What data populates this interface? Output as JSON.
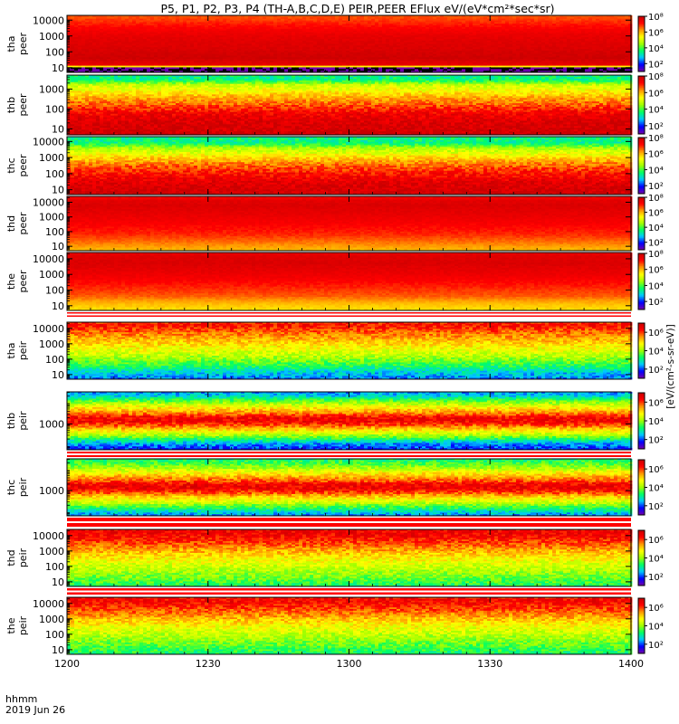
{
  "chart_data": {
    "type": "heatmap",
    "title": "P5, P1, P2, P3, P4 (TH-A,B,C,D,E) PEIR,PEER EFlux eV/(eV*cm²*sec*sr)",
    "x_ticks": [
      "1200",
      "1230",
      "1300",
      "1330",
      "1400"
    ],
    "x_tick_values": [
      1200,
      1230,
      1300,
      1330,
      1400
    ],
    "x_range": [
      "1200",
      "1400"
    ],
    "x_footer_label": "hhmm",
    "x_footer_date": "2019 Jun 26",
    "colorbar": {
      "label": "[eV/(cm²-s-sr-eV)]",
      "colors": [
        "#000000",
        "#7800a8",
        "#0000ff",
        "#00c8ff",
        "#00ff64",
        "#a0ff00",
        "#ffff00",
        "#ff9600",
        "#ff0000",
        "#c80000"
      ]
    },
    "panels": [
      {
        "id": "tha-peer",
        "label_line1": "tha",
        "label_line2": "peer",
        "y_ticks": [
          "10",
          "100",
          "1000",
          "10000"
        ],
        "y_tick_values": [
          10,
          100,
          1000,
          10000
        ],
        "y_range_log10": [
          0.7,
          4.3
        ],
        "colorbar_ticks": [
          "10²",
          "10⁴",
          "10⁶",
          "10⁸"
        ],
        "colorbar_range_log10": [
          1,
          8
        ],
        "energy_profile_log10": [
          [
            0.7,
            1.0
          ],
          [
            1.0,
            1.0
          ],
          [
            1.1,
            7.4
          ],
          [
            1.6,
            7.9
          ],
          [
            2.2,
            7.7
          ],
          [
            3.0,
            7.5
          ],
          [
            3.6,
            7.1
          ],
          [
            4.0,
            6.8
          ],
          [
            4.3,
            6.6
          ]
        ]
      },
      {
        "id": "thb-peer",
        "label_line1": "thb",
        "label_line2": "peer",
        "y_ticks": [
          "10",
          "100",
          "1000"
        ],
        "y_tick_values": [
          10,
          100,
          1000
        ],
        "y_range_log10": [
          0.7,
          3.7
        ],
        "colorbar_ticks": [
          "10²",
          "10⁴",
          "10⁶",
          "10⁸"
        ],
        "colorbar_range_log10": [
          1,
          8
        ],
        "energy_profile_log10": [
          [
            0.7,
            7.9
          ],
          [
            1.3,
            7.7
          ],
          [
            1.8,
            7.3
          ],
          [
            2.2,
            6.6
          ],
          [
            2.6,
            6.0
          ],
          [
            2.9,
            5.4
          ],
          [
            3.2,
            4.9
          ],
          [
            3.45,
            3.5
          ],
          [
            3.7,
            3.5
          ]
        ]
      },
      {
        "id": "thc-peer",
        "label_line1": "thc",
        "label_line2": "peer",
        "y_ticks": [
          "10",
          "100",
          "1000",
          "10000"
        ],
        "y_tick_values": [
          10,
          100,
          1000,
          10000
        ],
        "y_range_log10": [
          0.7,
          4.3
        ],
        "colorbar_ticks": [
          "10²",
          "10⁴",
          "10⁶",
          "10⁸"
        ],
        "colorbar_range_log10": [
          1,
          8
        ],
        "energy_profile_log10": [
          [
            0.7,
            7.9
          ],
          [
            1.4,
            7.6
          ],
          [
            2.0,
            7.1
          ],
          [
            2.6,
            6.4
          ],
          [
            3.0,
            5.7
          ],
          [
            3.3,
            5.1
          ],
          [
            3.6,
            4.6
          ],
          [
            3.9,
            3.5
          ],
          [
            4.3,
            3.5
          ]
        ]
      },
      {
        "id": "thd-peer",
        "label_line1": "thd",
        "label_line2": "peer",
        "y_ticks": [
          "10",
          "100",
          "1000",
          "10000"
        ],
        "y_tick_values": [
          10,
          100,
          1000,
          10000
        ],
        "y_range_log10": [
          0.7,
          4.4
        ],
        "colorbar_ticks": [
          "10²",
          "10⁴",
          "10⁶",
          "10⁸"
        ],
        "colorbar_range_log10": [
          1,
          8
        ],
        "energy_profile_log10": [
          [
            0.7,
            5.9
          ],
          [
            1.2,
            6.4
          ],
          [
            1.8,
            6.9
          ],
          [
            2.5,
            7.2
          ],
          [
            3.2,
            7.5
          ],
          [
            3.8,
            7.7
          ],
          [
            4.2,
            7.5
          ],
          [
            4.4,
            7.0
          ]
        ]
      },
      {
        "id": "the-peer",
        "label_line1": "the",
        "label_line2": "peer",
        "y_ticks": [
          "10",
          "100",
          "1000",
          "10000"
        ],
        "y_tick_values": [
          10,
          100,
          1000,
          10000
        ],
        "y_range_log10": [
          0.7,
          4.4
        ],
        "colorbar_ticks": [
          "10²",
          "10⁴",
          "10⁶",
          "10⁸"
        ],
        "colorbar_range_log10": [
          1,
          8
        ],
        "energy_profile_log10": [
          [
            0.7,
            5.6
          ],
          [
            1.1,
            5.9
          ],
          [
            1.6,
            6.6
          ],
          [
            2.3,
            7.0
          ],
          [
            3.0,
            7.4
          ],
          [
            3.7,
            7.7
          ],
          [
            4.2,
            7.6
          ],
          [
            4.4,
            7.3
          ]
        ]
      },
      {
        "id": "tha-peir",
        "label_line1": "tha",
        "label_line2": "peir",
        "y_ticks": [
          "10",
          "100",
          "1000",
          "10000"
        ],
        "y_tick_values": [
          10,
          100,
          1000,
          10000
        ],
        "y_range_log10": [
          0.7,
          4.4
        ],
        "colorbar_ticks": [
          "10²",
          "10⁴",
          "10⁶"
        ],
        "colorbar_range_log10": [
          1,
          7
        ],
        "energy_profile_log10": [
          [
            0.7,
            2.2
          ],
          [
            1.1,
            2.6
          ],
          [
            1.6,
            3.4
          ],
          [
            2.2,
            4.2
          ],
          [
            2.8,
            4.8
          ],
          [
            3.4,
            5.4
          ],
          [
            3.9,
            5.9
          ],
          [
            4.2,
            6.3
          ],
          [
            4.4,
            6.0
          ]
        ]
      },
      {
        "id": "thb-peir",
        "label_line1": "thb",
        "label_line2": "peir",
        "y_ticks": [
          "1000"
        ],
        "y_tick_values": [
          1000
        ],
        "y_range_log10": [
          1.8,
          4.5
        ],
        "colorbar_ticks": [
          "10²",
          "10⁴",
          "10⁶"
        ],
        "colorbar_range_log10": [
          1,
          7
        ],
        "energy_profile_log10": [
          [
            1.8,
            1.8
          ],
          [
            2.1,
            2.4
          ],
          [
            2.4,
            3.8
          ],
          [
            2.7,
            4.9
          ],
          [
            2.9,
            5.7
          ],
          [
            3.1,
            6.4
          ],
          [
            3.3,
            6.4
          ],
          [
            3.5,
            5.6
          ],
          [
            3.8,
            4.7
          ],
          [
            4.1,
            3.6
          ],
          [
            4.3,
            2.7
          ],
          [
            4.5,
            2.3
          ]
        ]
      },
      {
        "id": "thc-peir",
        "label_line1": "thc",
        "label_line2": "peir",
        "y_ticks": [
          "1000"
        ],
        "y_tick_values": [
          1000
        ],
        "y_range_log10": [
          1.8,
          4.5
        ],
        "colorbar_ticks": [
          "10²",
          "10⁴",
          "10⁶"
        ],
        "colorbar_range_log10": [
          1,
          7
        ],
        "energy_profile_log10": [
          [
            1.8,
            2.2
          ],
          [
            2.1,
            3.1
          ],
          [
            2.4,
            4.2
          ],
          [
            2.7,
            5.1
          ],
          [
            2.9,
            5.9
          ],
          [
            3.1,
            6.5
          ],
          [
            3.3,
            6.4
          ],
          [
            3.5,
            5.7
          ],
          [
            3.8,
            4.9
          ],
          [
            4.1,
            4.0
          ],
          [
            4.3,
            3.5
          ],
          [
            4.5,
            3.2
          ]
        ]
      },
      {
        "id": "thd-peir",
        "label_line1": "thd",
        "label_line2": "peir",
        "y_ticks": [
          "10",
          "100",
          "1000",
          "10000"
        ],
        "y_tick_values": [
          10,
          100,
          1000,
          10000
        ],
        "y_range_log10": [
          0.7,
          4.4
        ],
        "colorbar_ticks": [
          "10²",
          "10⁴",
          "10⁶"
        ],
        "colorbar_range_log10": [
          1,
          7
        ],
        "energy_profile_log10": [
          [
            0.7,
            3.3
          ],
          [
            1.2,
            3.7
          ],
          [
            1.8,
            4.2
          ],
          [
            2.4,
            4.7
          ],
          [
            3.0,
            5.3
          ],
          [
            3.5,
            5.9
          ],
          [
            3.9,
            6.3
          ],
          [
            4.2,
            6.5
          ],
          [
            4.4,
            6.3
          ]
        ]
      },
      {
        "id": "the-peir",
        "label_line1": "the",
        "label_line2": "peir",
        "y_ticks": [
          "10",
          "100",
          "1000",
          "10000"
        ],
        "y_tick_values": [
          10,
          100,
          1000,
          10000
        ],
        "y_range_log10": [
          0.7,
          4.4
        ],
        "colorbar_ticks": [
          "10²",
          "10⁴",
          "10⁶"
        ],
        "colorbar_range_log10": [
          1,
          7
        ],
        "energy_profile_log10": [
          [
            0.7,
            3.2
          ],
          [
            1.2,
            3.6
          ],
          [
            1.8,
            4.1
          ],
          [
            2.4,
            4.6
          ],
          [
            3.0,
            5.2
          ],
          [
            3.5,
            5.8
          ],
          [
            3.9,
            6.2
          ],
          [
            4.2,
            6.4
          ],
          [
            4.4,
            6.2
          ]
        ]
      }
    ]
  }
}
